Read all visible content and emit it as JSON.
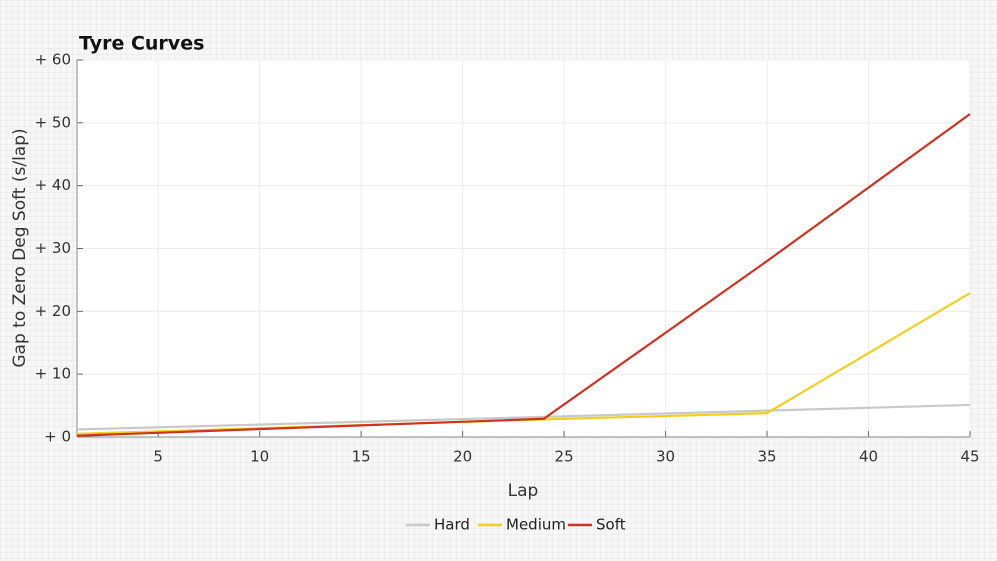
{
  "chart_data": {
    "type": "line",
    "title": "Tyre Curves",
    "x_label": "Lap",
    "y_label": "Gap to Zero Deg Soft (s/lap)",
    "x": [
      1,
      24,
      35,
      45
    ],
    "series": [
      {
        "name": "Hard",
        "color": "#c8c8c8",
        "values": [
          1.2,
          3.2,
          4.2,
          5.1
        ]
      },
      {
        "name": "Medium",
        "color": "#f2cf1f",
        "values": [
          0.5,
          2.8,
          3.8,
          22.9
        ]
      },
      {
        "name": "Soft",
        "color": "#cc3322",
        "values": [
          0.2,
          2.9,
          28.0,
          51.4
        ]
      }
    ],
    "xlim": [
      1,
      45
    ],
    "xticks": [
      5,
      10,
      15,
      20,
      25,
      30,
      35,
      40,
      45
    ],
    "ylim": [
      0,
      60
    ],
    "yticks": [
      {
        "value": 0,
        "label": "+ 0"
      },
      {
        "value": 10,
        "label": "+ 10"
      },
      {
        "value": 20,
        "label": "+ 20"
      },
      {
        "value": 30,
        "label": "+ 30"
      },
      {
        "value": 40,
        "label": "+ 40"
      },
      {
        "value": 50,
        "label": "+ 50"
      },
      {
        "value": 60,
        "label": "+ 60"
      }
    ],
    "grid": true,
    "legend": "bottom"
  }
}
